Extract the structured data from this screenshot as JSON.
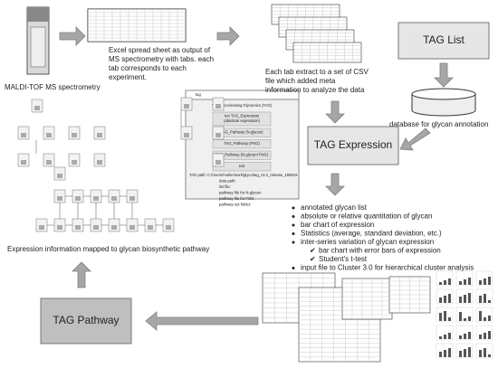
{
  "instrument": {
    "label": "MALDI-TOF MS spectrometry"
  },
  "excel": {
    "lines": [
      "Excel spread sheet as output of",
      "MS spectrometry with tabs. each",
      "tab corresponds to each",
      "experiment."
    ]
  },
  "csv": {
    "lines": [
      "Each tab extract to a set of CSV",
      "file which added meta",
      "information to analyze the data"
    ]
  },
  "tag_list": {
    "label": "TAG List"
  },
  "database": {
    "label": "database for glycan annotation"
  },
  "tag_expression": {
    "label": "TAG Expression",
    "bullets": [
      "annotated glycan list",
      "absolute or relative quantitation of glycan",
      "bar chart of expression",
      "Statistics (average, standard deviation, etc.)",
      "inter-series variation of glycan expression"
    ],
    "sub_bullets": [
      "bar chart with error bars of expression",
      "Student's t-test"
    ],
    "last_bullet": "input file to Cluster 3.0 for hierarchical cluster analysis"
  },
  "tag_pathway": {
    "label": "TAG Pathway"
  },
  "pathway": {
    "caption": "Expression information mapped to glycan biosynthetic pathway"
  },
  "dialog": {
    "title": "tag",
    "heading": "Tools accelerating Glycomics (TAG)",
    "buttons": [
      [
        "run TAG_Expression",
        "(absolute expression)"
      ],
      [
        "TAG_Pathway (N-glycan)"
      ],
      [
        "TAG_Pathway (FNG)"
      ],
      [
        "TAG_Pathway (N-glycan+FNG)"
      ],
      [
        "exit"
      ]
    ],
    "fields": [
      "TAG path:  C:/Users/muller/work/glyco/tag_v3.2_release_190619",
      "data path:",
      "list file:",
      "pathway file for N-glycan:",
      "pathway file for FOS:",
      "pathway out folder:"
    ]
  }
}
